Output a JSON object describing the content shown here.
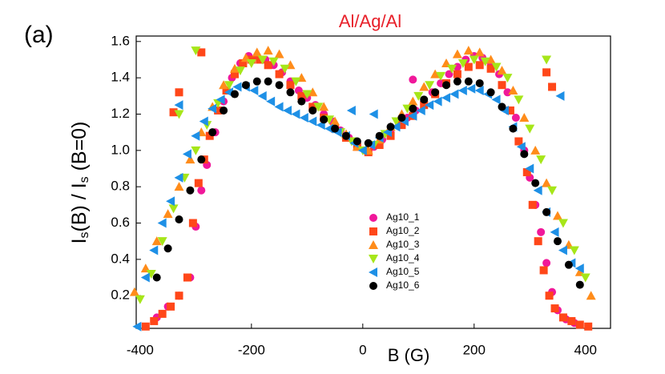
{
  "chart_data": {
    "type": "scatter",
    "panel_label": "(a)",
    "title": "Al/Ag/Al",
    "ylabel_parts": [
      "I",
      "s",
      "(B) / I",
      "s",
      " (B=0)"
    ],
    "xlabel": "B (G)",
    "xlim": [
      -407,
      445
    ],
    "xticks": [
      -400,
      -200,
      0,
      200,
      400
    ],
    "ylim": [
      0.02,
      1.63
    ],
    "yticks": [
      0.2,
      0.4,
      0.6,
      0.8,
      {
        "value": 1,
        "label": "1.0"
      },
      1.2,
      1.4,
      1.6
    ],
    "legend": "lower center",
    "series": [
      {
        "name": "Ag10_1",
        "color": "#f0189a",
        "marker": "circle",
        "x": [
          -370,
          -350,
          -330,
          -310,
          -300,
          -290,
          -280,
          -265,
          -250,
          -235,
          -220,
          -205,
          -190,
          -175,
          -160,
          -145,
          -130,
          -115,
          -100,
          -85,
          -70,
          -55,
          -40,
          -25,
          -10,
          5,
          20,
          35,
          50,
          65,
          80,
          95,
          110,
          125,
          140,
          155,
          170,
          185,
          200,
          215,
          230,
          245,
          260,
          275,
          290,
          300,
          310,
          320,
          330,
          340,
          350,
          365,
          380,
          90
        ],
        "values": [
          0.08,
          0.14,
          0.2,
          0.3,
          0.58,
          0.78,
          0.92,
          1.1,
          1.27,
          1.4,
          1.48,
          1.52,
          1.52,
          1.5,
          1.47,
          1.43,
          1.38,
          1.33,
          1.29,
          1.25,
          1.2,
          1.16,
          1.11,
          1.07,
          1.03,
          1.0,
          1.02,
          1.06,
          1.1,
          1.14,
          1.18,
          1.22,
          1.27,
          1.32,
          1.37,
          1.42,
          1.46,
          1.5,
          1.52,
          1.51,
          1.48,
          1.42,
          1.32,
          1.18,
          1.0,
          0.85,
          0.7,
          0.55,
          0.38,
          0.22,
          0.12,
          0.07,
          0.05,
          1.39
        ]
      },
      {
        "name": "Ag10_2",
        "color": "#ff4719",
        "marker": "square",
        "x": [
          -390,
          -375,
          -360,
          -345,
          -330,
          -315,
          -305,
          -295,
          -285,
          -275,
          -260,
          -245,
          -230,
          -215,
          -200,
          -185,
          -170,
          -150,
          -130,
          -110,
          -90,
          -70,
          -50,
          -30,
          -10,
          10,
          30,
          50,
          70,
          90,
          110,
          130,
          150,
          170,
          190,
          210,
          230,
          250,
          265,
          280,
          295,
          305,
          315,
          325,
          335,
          345,
          360,
          375,
          390,
          405,
          -290,
          -330,
          -340,
          330,
          340
        ],
        "values": [
          0.03,
          0.06,
          0.1,
          0.14,
          0.2,
          0.3,
          0.6,
          0.82,
          0.95,
          1.08,
          1.22,
          1.33,
          1.42,
          1.48,
          1.5,
          1.5,
          1.47,
          1.42,
          1.36,
          1.3,
          1.24,
          1.18,
          1.12,
          1.07,
          1.02,
          0.99,
          1.03,
          1.08,
          1.14,
          1.19,
          1.25,
          1.31,
          1.37,
          1.42,
          1.46,
          1.47,
          1.45,
          1.36,
          1.22,
          1.05,
          0.88,
          0.7,
          0.5,
          0.34,
          0.2,
          0.13,
          0.08,
          0.06,
          0.04,
          0.03,
          1.54,
          1.32,
          1.21,
          1.43,
          1.35
        ]
      },
      {
        "name": "Ag10_3",
        "color": "#ff8c1a",
        "marker": "triangle-up",
        "x": [
          -410,
          -390,
          -370,
          -350,
          -330,
          -310,
          -290,
          -270,
          -250,
          -230,
          -210,
          -190,
          -170,
          -150,
          -130,
          -110,
          -90,
          -70,
          -50,
          -30,
          -10,
          10,
          30,
          50,
          70,
          90,
          110,
          130,
          150,
          170,
          190,
          210,
          230,
          250,
          270,
          290,
          310,
          330,
          350,
          370,
          390,
          410
        ],
        "values": [
          0.22,
          0.35,
          0.5,
          0.65,
          0.8,
          0.95,
          1.1,
          1.24,
          1.36,
          1.45,
          1.51,
          1.54,
          1.55,
          1.53,
          1.47,
          1.4,
          1.32,
          1.24,
          1.16,
          1.09,
          1.02,
          1.0,
          1.06,
          1.13,
          1.2,
          1.27,
          1.35,
          1.42,
          1.48,
          1.53,
          1.55,
          1.54,
          1.5,
          1.44,
          1.33,
          1.18,
          1.0,
          0.82,
          0.64,
          0.48,
          0.33,
          0.2
        ]
      },
      {
        "name": "Ag10_4",
        "color": "#a6e619",
        "marker": "triangle-down",
        "x": [
          -400,
          -380,
          -360,
          -340,
          -320,
          -300,
          -280,
          -260,
          -240,
          -220,
          -200,
          -180,
          -160,
          -140,
          -120,
          -100,
          -80,
          -60,
          -40,
          -20,
          0,
          20,
          40,
          60,
          80,
          100,
          120,
          140,
          160,
          180,
          200,
          220,
          240,
          260,
          280,
          300,
          320,
          340,
          360,
          380,
          400,
          -300,
          -330,
          330
        ],
        "values": [
          0.18,
          0.32,
          0.5,
          0.68,
          0.85,
          1.0,
          1.14,
          1.26,
          1.36,
          1.44,
          1.48,
          1.5,
          1.49,
          1.45,
          1.38,
          1.31,
          1.24,
          1.17,
          1.1,
          1.05,
          1.0,
          1.03,
          1.09,
          1.16,
          1.23,
          1.3,
          1.36,
          1.41,
          1.45,
          1.48,
          1.5,
          1.49,
          1.46,
          1.4,
          1.28,
          1.12,
          0.95,
          0.78,
          0.6,
          0.45,
          0.3,
          1.55,
          1.2,
          1.5
        ]
      },
      {
        "name": "Ag10_5",
        "color": "#1e90e6",
        "marker": "triangle-left",
        "x": [
          -405,
          -390,
          -375,
          -360,
          -345,
          -330,
          -315,
          -300,
          -285,
          -270,
          -255,
          -240,
          -225,
          -210,
          -195,
          -180,
          -165,
          -150,
          -135,
          -120,
          -105,
          -90,
          -75,
          -60,
          -45,
          -30,
          -15,
          0,
          15,
          30,
          45,
          60,
          75,
          90,
          105,
          120,
          135,
          150,
          165,
          180,
          195,
          210,
          225,
          240,
          255,
          270,
          285,
          300,
          315,
          330,
          345,
          360,
          375,
          390,
          -20,
          20,
          -330,
          355
        ],
        "values": [
          0.03,
          0.3,
          0.45,
          0.6,
          0.72,
          0.85,
          0.98,
          1.08,
          1.16,
          1.23,
          1.28,
          1.32,
          1.35,
          1.35,
          1.33,
          1.3,
          1.27,
          1.24,
          1.22,
          1.2,
          1.18,
          1.16,
          1.14,
          1.12,
          1.1,
          1.08,
          1.04,
          1.0,
          1.03,
          1.07,
          1.1,
          1.13,
          1.16,
          1.19,
          1.22,
          1.25,
          1.27,
          1.29,
          1.31,
          1.33,
          1.34,
          1.33,
          1.31,
          1.28,
          1.22,
          1.13,
          1.02,
          0.9,
          0.78,
          0.66,
          0.55,
          0.45,
          0.38,
          0.35,
          1.22,
          1.2,
          1.25,
          1.3
        ]
      },
      {
        "name": "Ag10_6",
        "color": "#000000",
        "marker": "circle",
        "x": [
          -370,
          -350,
          -330,
          -310,
          -290,
          -270,
          -250,
          -230,
          -210,
          -190,
          -170,
          -150,
          -130,
          -110,
          -90,
          -70,
          -50,
          -30,
          -10,
          10,
          30,
          50,
          70,
          90,
          110,
          130,
          150,
          170,
          190,
          210,
          230,
          250,
          270,
          290,
          310,
          330,
          350,
          370,
          390
        ],
        "values": [
          0.3,
          0.46,
          0.62,
          0.78,
          0.95,
          1.1,
          1.22,
          1.31,
          1.36,
          1.38,
          1.38,
          1.36,
          1.32,
          1.27,
          1.22,
          1.17,
          1.12,
          1.08,
          1.05,
          1.04,
          1.08,
          1.13,
          1.18,
          1.23,
          1.28,
          1.32,
          1.36,
          1.38,
          1.38,
          1.37,
          1.32,
          1.24,
          1.12,
          0.98,
          0.82,
          0.66,
          0.5,
          0.37,
          0.26
        ]
      }
    ]
  }
}
